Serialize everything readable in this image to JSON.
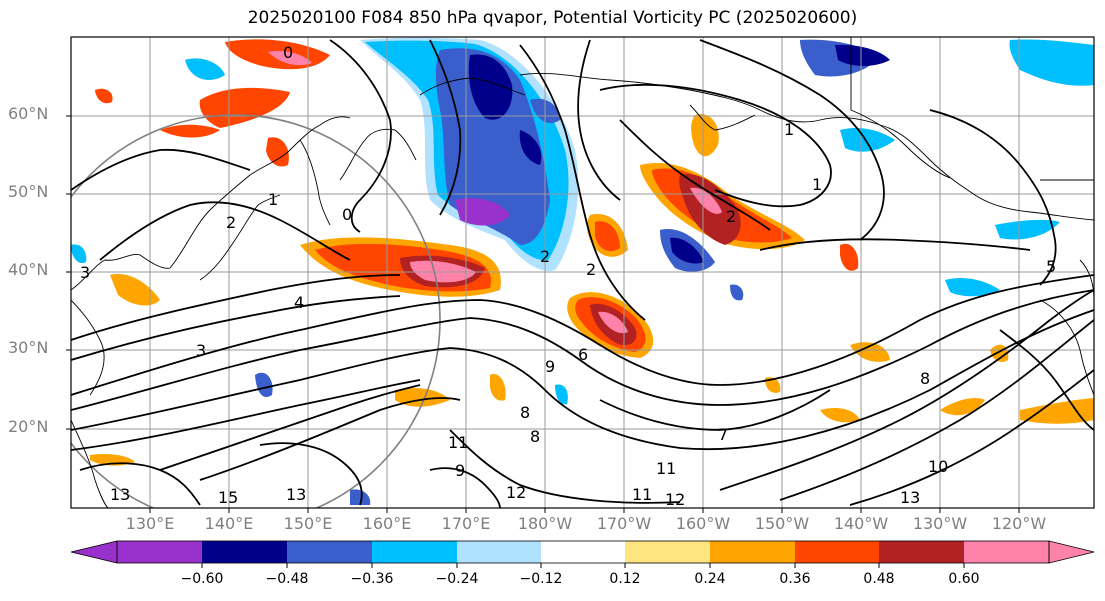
{
  "title": "2025020100 F084 850 hPa qvapor, Potential Vorticity PC (2025020600)",
  "latitude_labels": [
    "60°N",
    "50°N",
    "40°N",
    "30°N",
    "20°N"
  ],
  "longitude_labels": [
    "130°E",
    "140°E",
    "150°E",
    "160°E",
    "170°E",
    "180°W",
    "170°W",
    "160°W",
    "150°W",
    "140°W",
    "130°W",
    "120°W"
  ],
  "colorbar": {
    "tick_labels": [
      "−0.60",
      "−0.48",
      "−0.36",
      "−0.24",
      "−0.12",
      "0.12",
      "0.24",
      "0.36",
      "0.48",
      "0.60"
    ],
    "colors": [
      "#9932cc",
      "#00008b",
      "#3a5fcd",
      "#00bfff",
      "#b0e2ff",
      "#ffffff",
      "#ffe57f",
      "#ffa500",
      "#ff4500",
      "#b22222",
      "#ff82ab",
      "#ff82ab"
    ]
  },
  "contour_labels": [
    "0",
    "0",
    "1",
    "1",
    "1",
    "2",
    "2",
    "2",
    "2",
    "3",
    "3",
    "4",
    "5",
    "6",
    "7",
    "8",
    "8",
    "8",
    "9",
    "9",
    "10",
    "11",
    "11",
    "11",
    "12",
    "12",
    "13",
    "13",
    "13",
    "15"
  ]
}
